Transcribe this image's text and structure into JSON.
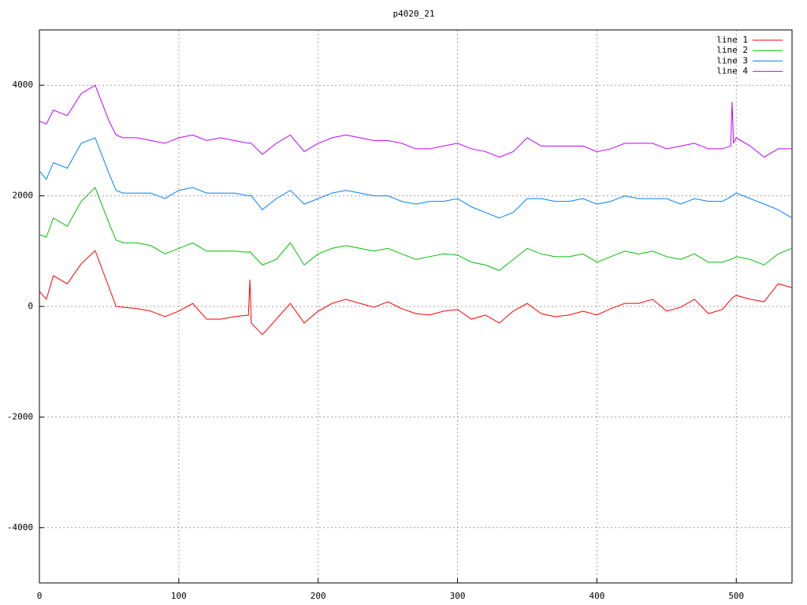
{
  "chart_data": {
    "type": "line",
    "title": "p4020_21",
    "x": [
      0,
      5,
      10,
      20,
      30,
      40,
      50,
      55,
      60,
      70,
      80,
      90,
      100,
      110,
      120,
      130,
      140,
      150,
      151,
      152,
      160,
      170,
      180,
      190,
      200,
      210,
      220,
      230,
      240,
      250,
      260,
      270,
      280,
      290,
      300,
      310,
      320,
      330,
      340,
      350,
      360,
      370,
      380,
      390,
      400,
      410,
      420,
      430,
      440,
      450,
      460,
      470,
      480,
      490,
      496,
      497,
      498,
      500,
      510,
      520,
      530,
      540
    ],
    "series": [
      {
        "name": "line 1",
        "color": "#ff0000",
        "values": [
          270,
          130,
          555,
          410,
          770,
          1010,
          340,
          0,
          -15,
          -40,
          -85,
          -185,
          -85,
          55,
          -230,
          -230,
          -185,
          -155,
          485,
          -300,
          -510,
          -230,
          55,
          -300,
          -85,
          55,
          130,
          55,
          -15,
          85,
          -40,
          -130,
          -155,
          -85,
          -55,
          -230,
          -155,
          -300,
          -85,
          55,
          -130,
          -185,
          -155,
          -85,
          -155,
          -40,
          55,
          55,
          130,
          -85,
          -15,
          130,
          -130,
          -55,
          120,
          150,
          170,
          200,
          130,
          85,
          410,
          340
        ]
      },
      {
        "name": "line 2",
        "color": "#00c000",
        "values": [
          1300,
          1250,
          1600,
          1450,
          1900,
          2150,
          1500,
          1200,
          1150,
          1150,
          1100,
          950,
          1050,
          1150,
          1000,
          1000,
          1000,
          980,
          990,
          960,
          750,
          850,
          1150,
          750,
          950,
          1050,
          1100,
          1050,
          1000,
          1050,
          950,
          850,
          900,
          950,
          930,
          800,
          750,
          650,
          850,
          1050,
          950,
          900,
          900,
          950,
          800,
          900,
          1000,
          950,
          1000,
          900,
          850,
          950,
          800,
          800,
          850,
          860,
          870,
          900,
          850,
          750,
          950,
          1050
        ]
      },
      {
        "name": "line 3",
        "color": "#0080ff",
        "values": [
          2450,
          2300,
          2600,
          2500,
          2950,
          3050,
          2400,
          2100,
          2050,
          2050,
          2050,
          1950,
          2100,
          2150,
          2050,
          2050,
          2050,
          2000,
          2010,
          2000,
          1750,
          1950,
          2100,
          1850,
          1950,
          2050,
          2100,
          2050,
          2000,
          2000,
          1900,
          1850,
          1900,
          1900,
          1950,
          1800,
          1700,
          1600,
          1700,
          1950,
          1950,
          1900,
          1900,
          1950,
          1850,
          1900,
          2000,
          1950,
          1950,
          1950,
          1850,
          1950,
          1900,
          1900,
          1980,
          2000,
          2020,
          2050,
          1950,
          1850,
          1750,
          1600
        ]
      },
      {
        "name": "line 4",
        "color": "#c000ff",
        "values": [
          3350,
          3300,
          3550,
          3450,
          3850,
          4000,
          3350,
          3100,
          3050,
          3050,
          3000,
          2950,
          3050,
          3100,
          3000,
          3050,
          3000,
          2950,
          2960,
          2950,
          2750,
          2950,
          3100,
          2800,
          2950,
          3050,
          3100,
          3050,
          3000,
          3000,
          2950,
          2850,
          2850,
          2900,
          2950,
          2850,
          2800,
          2700,
          2800,
          3050,
          2900,
          2900,
          2900,
          2900,
          2800,
          2850,
          2950,
          2950,
          2950,
          2850,
          2900,
          2950,
          2850,
          2850,
          2900,
          3700,
          2950,
          3050,
          2900,
          2700,
          2850,
          2850
        ]
      }
    ],
    "xlim": [
      0,
      540
    ],
    "xticks": [
      0,
      100,
      200,
      300,
      400,
      500
    ],
    "ylim": [
      -5000,
      5000
    ],
    "yticks": [
      -4000,
      -2000,
      0,
      2000,
      4000
    ],
    "grid": true,
    "legend": "top-right"
  }
}
